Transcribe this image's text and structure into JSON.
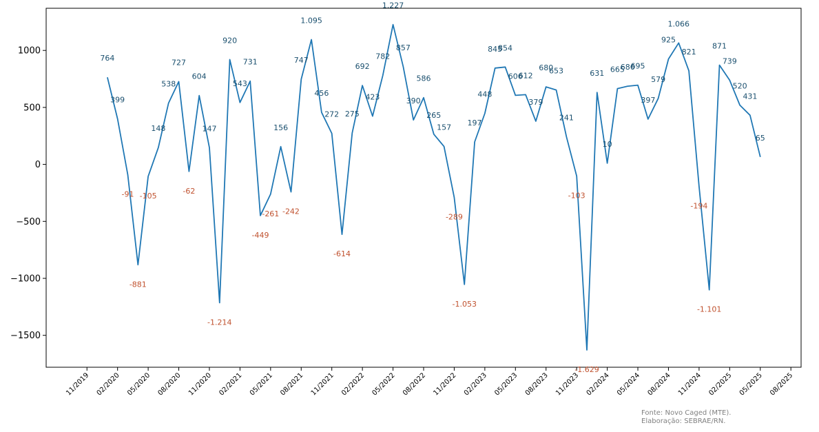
{
  "chart_data": {
    "type": "line",
    "title": "",
    "xlabel": "",
    "ylabel": "",
    "x_ticks": [
      "11/2019",
      "02/2020",
      "05/2020",
      "08/2020",
      "11/2020",
      "02/2021",
      "05/2021",
      "08/2021",
      "11/2021",
      "02/2022",
      "05/2022",
      "08/2022",
      "11/2022",
      "02/2023",
      "05/2023",
      "08/2023",
      "11/2023",
      "02/2024",
      "05/2024",
      "08/2024",
      "11/2024",
      "02/2025",
      "05/2025",
      "08/2025"
    ],
    "y_ticks": [
      "1000",
      "500",
      "0",
      "−500",
      "−1000",
      "−1500"
    ],
    "y_tick_values": [
      1000,
      500,
      0,
      -500,
      -1000,
      -1500
    ],
    "ylim": [
      -1780,
      1370
    ],
    "xlim": [
      "07/2019",
      "09/2025"
    ],
    "grid": false,
    "line_color": "#1f77b4",
    "positive_label_color": "#1a4f6e",
    "negative_label_color": "#c0522f",
    "series": [
      {
        "points": [
          {
            "x": "01/2020",
            "v": 764,
            "label": "764"
          },
          {
            "x": "02/2020",
            "v": 399,
            "label": "399"
          },
          {
            "x": "03/2020",
            "v": -91,
            "label": "-91"
          },
          {
            "x": "04/2020",
            "v": -881,
            "label": "-881"
          },
          {
            "x": "05/2020",
            "v": -105,
            "label": "-105"
          },
          {
            "x": "06/2020",
            "v": 148,
            "label": "148"
          },
          {
            "x": "07/2020",
            "v": 538,
            "label": "538"
          },
          {
            "x": "08/2020",
            "v": 727,
            "label": "727"
          },
          {
            "x": "09/2020",
            "v": -62,
            "label": "-62"
          },
          {
            "x": "10/2020",
            "v": 604,
            "label": "604"
          },
          {
            "x": "11/2020",
            "v": 147,
            "label": "147"
          },
          {
            "x": "12/2020",
            "v": -1214,
            "label": "-1.214"
          },
          {
            "x": "01/2021",
            "v": 920,
            "label": "920"
          },
          {
            "x": "02/2021",
            "v": 543,
            "label": "543"
          },
          {
            "x": "03/2021",
            "v": 731,
            "label": "731"
          },
          {
            "x": "04/2021",
            "v": -449,
            "label": "-449"
          },
          {
            "x": "05/2021",
            "v": -261,
            "label": "-261"
          },
          {
            "x": "06/2021",
            "v": 156,
            "label": "156"
          },
          {
            "x": "07/2021",
            "v": -242,
            "label": "-242"
          },
          {
            "x": "08/2021",
            "v": 747,
            "label": "747"
          },
          {
            "x": "09/2021",
            "v": 1095,
            "label": "1.095"
          },
          {
            "x": "10/2021",
            "v": 456,
            "label": "456"
          },
          {
            "x": "11/2021",
            "v": 272,
            "label": "272"
          },
          {
            "x": "12/2021",
            "v": -614,
            "label": "-614"
          },
          {
            "x": "01/2022",
            "v": 275,
            "label": "275"
          },
          {
            "x": "02/2022",
            "v": 692,
            "label": "692"
          },
          {
            "x": "03/2022",
            "v": 423,
            "label": "423"
          },
          {
            "x": "04/2022",
            "v": 782,
            "label": "782"
          },
          {
            "x": "05/2022",
            "v": 1227,
            "label": "1.227"
          },
          {
            "x": "06/2022",
            "v": 857,
            "label": "857"
          },
          {
            "x": "07/2022",
            "v": 390,
            "label": "390"
          },
          {
            "x": "08/2022",
            "v": 586,
            "label": "586"
          },
          {
            "x": "09/2022",
            "v": 265,
            "label": "265"
          },
          {
            "x": "10/2022",
            "v": 157,
            "label": "157"
          },
          {
            "x": "11/2022",
            "v": -289,
            "label": "-289"
          },
          {
            "x": "12/2022",
            "v": -1053,
            "label": "-1.053"
          },
          {
            "x": "01/2023",
            "v": 197,
            "label": "197"
          },
          {
            "x": "02/2023",
            "v": 448,
            "label": "448"
          },
          {
            "x": "03/2023",
            "v": 845,
            "label": "845"
          },
          {
            "x": "04/2023",
            "v": 854,
            "label": "854"
          },
          {
            "x": "05/2023",
            "v": 606,
            "label": "606"
          },
          {
            "x": "06/2023",
            "v": 612,
            "label": "612"
          },
          {
            "x": "07/2023",
            "v": 379,
            "label": "379"
          },
          {
            "x": "08/2023",
            "v": 680,
            "label": "680"
          },
          {
            "x": "09/2023",
            "v": 653,
            "label": "653"
          },
          {
            "x": "10/2023",
            "v": 241,
            "label": "241"
          },
          {
            "x": "11/2023",
            "v": -103,
            "label": "-103"
          },
          {
            "x": "12/2023",
            "v": -1629,
            "label": "-1.629"
          },
          {
            "x": "01/2024",
            "v": 631,
            "label": "631"
          },
          {
            "x": "02/2024",
            "v": 10,
            "label": "10"
          },
          {
            "x": "03/2024",
            "v": 665,
            "label": "665"
          },
          {
            "x": "04/2024",
            "v": 686,
            "label": "686"
          },
          {
            "x": "05/2024",
            "v": 695,
            "label": "695"
          },
          {
            "x": "06/2024",
            "v": 397,
            "label": "397"
          },
          {
            "x": "07/2024",
            "v": 579,
            "label": "579"
          },
          {
            "x": "08/2024",
            "v": 925,
            "label": "925"
          },
          {
            "x": "09/2024",
            "v": 1066,
            "label": "1.066"
          },
          {
            "x": "10/2024",
            "v": 821,
            "label": "821"
          },
          {
            "x": "11/2024",
            "v": -194,
            "label": "-194"
          },
          {
            "x": "12/2024",
            "v": -1101,
            "label": "-1.101"
          },
          {
            "x": "01/2025",
            "v": 871,
            "label": "871"
          },
          {
            "x": "02/2025",
            "v": 739,
            "label": "739"
          },
          {
            "x": "03/2025",
            "v": 520,
            "label": "520"
          },
          {
            "x": "04/2025",
            "v": 431,
            "label": "431"
          },
          {
            "x": "05/2025",
            "v": 65,
            "label": "65"
          }
        ]
      }
    ]
  },
  "footer": {
    "source": "Fonte: Novo Caged (MTE).",
    "credit": "Elaboração: SEBRAE/RN."
  }
}
